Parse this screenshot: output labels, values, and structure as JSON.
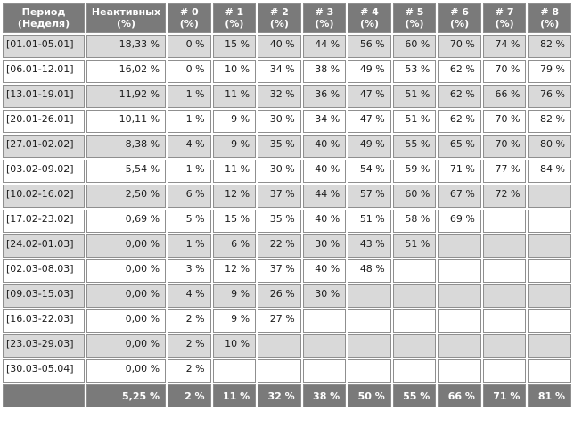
{
  "header": {
    "period": "Период\n(Неделя)",
    "inactive": "Неактивных\n(%)",
    "weeks": [
      "# 0\n(%)",
      "# 1\n(%)",
      "# 2\n(%)",
      "# 3\n(%)",
      "# 4\n(%)",
      "# 5\n(%)",
      "# 6\n(%)",
      "# 7\n(%)",
      "# 8\n(%)"
    ]
  },
  "rows": [
    {
      "period": "[01.01-05.01]",
      "inactive": "18,33 %",
      "weeks": [
        "0 %",
        "15 %",
        "40 %",
        "44 %",
        "56 %",
        "60 %",
        "70 %",
        "74 %",
        "82 %"
      ]
    },
    {
      "period": "[06.01-12.01]",
      "inactive": "16,02 %",
      "weeks": [
        "0 %",
        "10 %",
        "34 %",
        "38 %",
        "49 %",
        "53 %",
        "62 %",
        "70 %",
        "79 %"
      ]
    },
    {
      "period": "[13.01-19.01]",
      "inactive": "11,92 %",
      "weeks": [
        "1 %",
        "11 %",
        "32 %",
        "36 %",
        "47 %",
        "51 %",
        "62 %",
        "66 %",
        "76 %"
      ]
    },
    {
      "period": "[20.01-26.01]",
      "inactive": "10,11 %",
      "weeks": [
        "1 %",
        "9 %",
        "30 %",
        "34 %",
        "47 %",
        "51 %",
        "62 %",
        "70 %",
        "82 %"
      ]
    },
    {
      "period": "[27.01-02.02]",
      "inactive": "8,38 %",
      "weeks": [
        "4 %",
        "9 %",
        "35 %",
        "40 %",
        "49 %",
        "55 %",
        "65 %",
        "70 %",
        "80 %"
      ]
    },
    {
      "period": "[03.02-09.02]",
      "inactive": "5,54 %",
      "weeks": [
        "1 %",
        "11 %",
        "30 %",
        "40 %",
        "54 %",
        "59 %",
        "71 %",
        "77 %",
        "84 %"
      ]
    },
    {
      "period": "[10.02-16.02]",
      "inactive": "2,50 %",
      "weeks": [
        "6 %",
        "12 %",
        "37 %",
        "44 %",
        "57 %",
        "60 %",
        "67 %",
        "72 %",
        ""
      ]
    },
    {
      "period": "[17.02-23.02]",
      "inactive": "0,69 %",
      "weeks": [
        "5 %",
        "15 %",
        "35 %",
        "40 %",
        "51 %",
        "58 %",
        "69 %",
        "",
        ""
      ]
    },
    {
      "period": "[24.02-01.03]",
      "inactive": "0,00 %",
      "weeks": [
        "1 %",
        "6 %",
        "22 %",
        "30 %",
        "43 %",
        "51 %",
        "",
        "",
        ""
      ]
    },
    {
      "period": "[02.03-08.03]",
      "inactive": "0,00 %",
      "weeks": [
        "3 %",
        "12 %",
        "37 %",
        "40 %",
        "48 %",
        "",
        "",
        "",
        ""
      ]
    },
    {
      "period": "[09.03-15.03]",
      "inactive": "0,00 %",
      "weeks": [
        "4 %",
        "9 %",
        "26 %",
        "30 %",
        "",
        "",
        "",
        "",
        ""
      ]
    },
    {
      "period": "[16.03-22.03]",
      "inactive": "0,00 %",
      "weeks": [
        "2 %",
        "9 %",
        "27 %",
        "",
        "",
        "",
        "",
        "",
        ""
      ]
    },
    {
      "period": "[23.03-29.03]",
      "inactive": "0,00 %",
      "weeks": [
        "2 %",
        "10 %",
        "",
        "",
        "",
        "",
        "",
        "",
        ""
      ]
    },
    {
      "period": "[30.03-05.04]",
      "inactive": "0,00 %",
      "weeks": [
        "2 %",
        "",
        "",
        "",
        "",
        "",
        "",
        "",
        ""
      ]
    }
  ],
  "totals": {
    "period": "",
    "inactive": "5,25 %",
    "weeks": [
      "2 %",
      "11 %",
      "32 %",
      "38 %",
      "50 %",
      "55 %",
      "66 %",
      "71 %",
      "81 %"
    ]
  },
  "colors": {
    "header_bg": "#7a7a7a",
    "odd_row_bg": "#d9d9d9",
    "even_row_bg": "#ffffff",
    "border": "#8f8f8f"
  }
}
